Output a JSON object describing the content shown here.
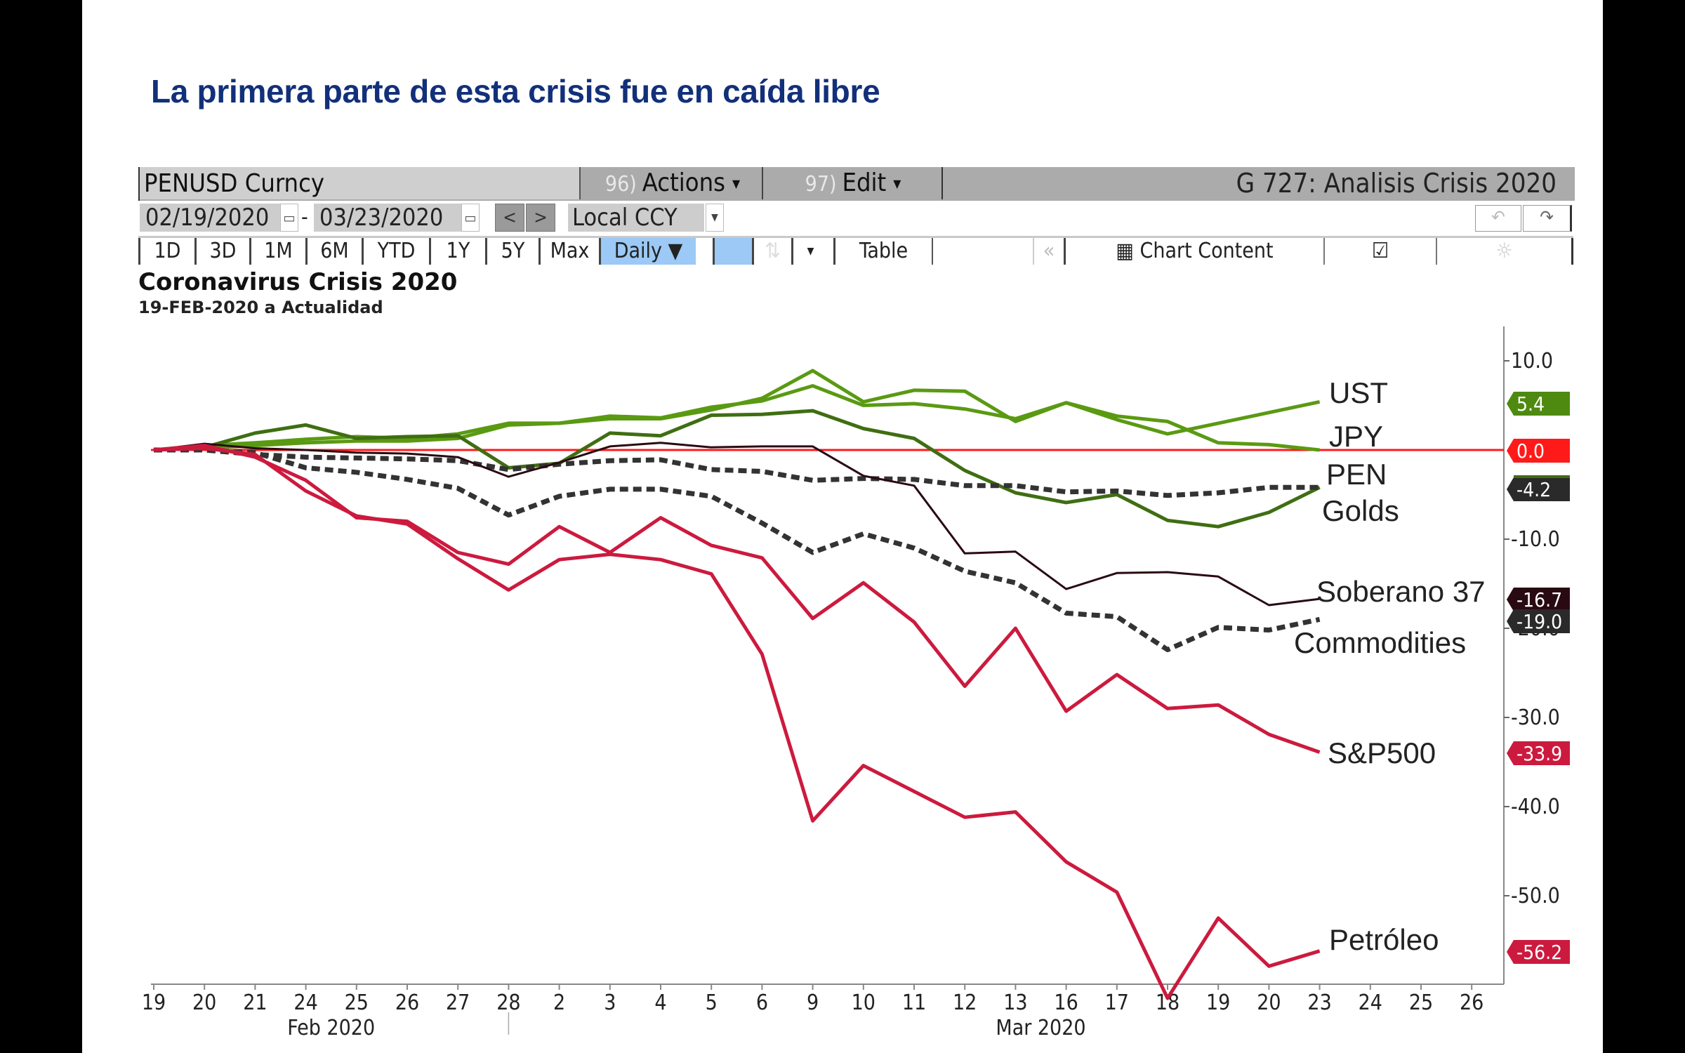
{
  "slide": {
    "title": "La primera parte de esta crisis fue en caída libre"
  },
  "toolbar": {
    "ticker": "PENUSD Curncy",
    "actions_num": "96)",
    "actions_label": "Actions",
    "edit_num": "97)",
    "edit_label": "Edit",
    "graph_title": "G 727: Analisis Crisis 2020",
    "start_date": "02/19/2020",
    "date_sep": "-",
    "end_date": "03/23/2020",
    "prev": "<",
    "next": ">",
    "currency": "Local CCY",
    "undo_icon": "↶",
    "redo_icon": "↷",
    "periods": [
      "1D",
      "3D",
      "1M",
      "6M",
      "YTD",
      "1Y",
      "5Y",
      "Max"
    ],
    "frequency": "Daily ▼",
    "table_label": "Table",
    "collapse_icon": "«",
    "chart_content_label": "Chart Content",
    "edit_chart_icon": "☑",
    "settings_icon": "☼"
  },
  "chart_data": {
    "type": "line",
    "title": "Coronavirus Crisis 2020",
    "subtitle": "19-FEB-2020 a Actualidad",
    "xlabel": "",
    "ylabel": "",
    "x": [
      "19",
      "20",
      "21",
      "24",
      "25",
      "26",
      "27",
      "28",
      "2",
      "3",
      "4",
      "5",
      "6",
      "9",
      "10",
      "11",
      "12",
      "13",
      "16",
      "17",
      "18",
      "19",
      "20",
      "23"
    ],
    "x_axis_ticks": [
      "19",
      "20",
      "21",
      "24",
      "25",
      "26",
      "27",
      "28",
      "2",
      "3",
      "4",
      "5",
      "6",
      "9",
      "10",
      "11",
      "12",
      "13",
      "16",
      "17",
      "18",
      "19",
      "20",
      "23",
      "24",
      "25",
      "26"
    ],
    "month_labels": [
      "Feb 2020",
      "Mar 2020"
    ],
    "y_ticks": [
      "10.0",
      "-10.0",
      "-20.0",
      "-30.0",
      "-40.0",
      "-50.0"
    ],
    "ylim": [
      -60,
      15
    ],
    "y_axis_side": "right",
    "grid": false,
    "reference_line": {
      "value": 0.0,
      "color": "#ff1a1a"
    },
    "series": [
      {
        "name": "UST",
        "color": "#5a9a12",
        "style": "solid",
        "last": "5.4",
        "badge_color": "#4e8a10",
        "values": [
          0,
          0.5,
          0.8,
          1.2,
          1.5,
          1.3,
          1.8,
          3.0,
          3.0,
          3.8,
          3.6,
          4.8,
          5.5,
          7.2,
          5.0,
          5.2,
          4.6,
          3.5,
          5.3,
          3.4,
          1.8,
          3.0,
          4.2,
          5.4
        ]
      },
      {
        "name": "JPY",
        "color": "#5a9a12",
        "style": "solid",
        "last": "0.0",
        "badge_color": "#ff1a1a",
        "values": [
          0,
          0.2,
          0.5,
          0.8,
          1.0,
          1.0,
          1.3,
          2.8,
          3.0,
          3.5,
          3.5,
          4.5,
          5.8,
          8.9,
          5.4,
          6.7,
          6.6,
          3.2,
          5.3,
          3.8,
          3.2,
          0.8,
          0.6,
          0.0
        ]
      },
      {
        "name": "PEN",
        "color": "#3f6e12",
        "style": "solid",
        "last": "-4.2",
        "badge_color": "#2a2a2a",
        "values": [
          0,
          0.3,
          1.9,
          2.8,
          1.3,
          1.5,
          1.6,
          -2.0,
          -1.5,
          1.9,
          1.6,
          3.9,
          4.0,
          4.4,
          2.4,
          1.3,
          -2.3,
          -4.8,
          -5.9,
          -5.0,
          -7.9,
          -8.6,
          -7.0,
          -4.2
        ]
      },
      {
        "name": "Golds",
        "color": "#333333",
        "style": "dashed",
        "last": "-4.2",
        "badge_color": "#2a2a2a",
        "values": [
          0,
          0,
          -0.5,
          -0.8,
          -0.9,
          -1.0,
          -1.2,
          -2.2,
          -1.6,
          -1.2,
          -1.1,
          -2.2,
          -2.4,
          -3.4,
          -3.2,
          -3.3,
          -4.0,
          -4.0,
          -4.7,
          -4.6,
          -5.1,
          -4.8,
          -4.2,
          -4.2
        ]
      },
      {
        "name": "Soberano 37",
        "color": "#2a0a12",
        "style": "thin",
        "last": "-16.7",
        "badge_color": "#2a0a12",
        "values": [
          0,
          0.7,
          0.2,
          0,
          -0.3,
          -0.4,
          -0.8,
          -3.0,
          -1.4,
          0.4,
          0.8,
          0.3,
          0.4,
          0.4,
          -2.9,
          -4.0,
          -11.6,
          -11.4,
          -15.6,
          -13.8,
          -13.7,
          -14.2,
          -17.4,
          -16.7
        ]
      },
      {
        "name": "Commodities",
        "color": "#333333",
        "style": "dashed",
        "last": "-19.0",
        "badge_color": "#2a2a2a",
        "values": [
          0,
          0,
          -0.3,
          -2.0,
          -2.5,
          -3.3,
          -4.3,
          -7.3,
          -5.2,
          -4.4,
          -4.4,
          -5.2,
          -8.2,
          -11.5,
          -9.4,
          -11.0,
          -13.6,
          -14.9,
          -18.3,
          -18.7,
          -22.4,
          -19.9,
          -20.2,
          -19.0
        ]
      },
      {
        "name": "S&P500",
        "color": "#cc1a3e",
        "style": "solid",
        "last": "-33.9",
        "badge_color": "#cc1a3e",
        "values": [
          0,
          0.5,
          -0.8,
          -3.4,
          -7.6,
          -8.0,
          -11.5,
          -12.8,
          -8.6,
          -11.5,
          -7.6,
          -10.7,
          -12.1,
          -18.9,
          -14.9,
          -19.3,
          -26.5,
          -20.0,
          -29.3,
          -25.2,
          -29.0,
          -28.6,
          -31.9,
          -33.9
        ]
      },
      {
        "name": "Petróleo",
        "color": "#cc1a3e",
        "style": "solid",
        "last": "-56.2",
        "badge_color": "#cc1a3e",
        "values": [
          0,
          0.2,
          -0.5,
          -4.6,
          -7.4,
          -8.3,
          -12.2,
          -15.7,
          -12.3,
          -11.7,
          -12.3,
          -13.9,
          -22.9,
          -41.6,
          -35.4,
          -38.3,
          -41.2,
          -40.6,
          -46.2,
          -49.6,
          -61.5,
          -52.5,
          -57.9,
          -56.2
        ]
      }
    ]
  }
}
